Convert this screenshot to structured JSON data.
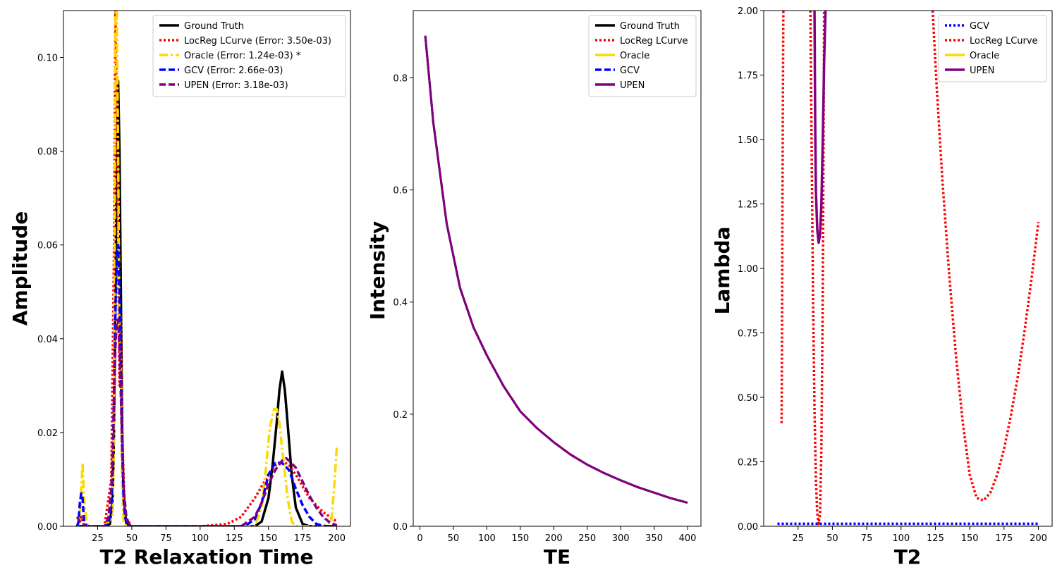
{
  "chart_data": [
    {
      "type": "line",
      "xlabel": "T2 Relaxation Time",
      "ylabel": "Amplitude",
      "xlim": [
        0,
        210
      ],
      "ylim": [
        0,
        0.11
      ],
      "xticks": [
        25,
        50,
        75,
        100,
        125,
        150,
        175,
        200
      ],
      "xtick_labels": [
        "25",
        "50",
        "75",
        "100",
        "125",
        "150",
        "175",
        "200"
      ],
      "yticks": [
        0.0,
        0.02,
        0.04,
        0.06,
        0.08,
        0.1
      ],
      "ytick_labels": [
        "0.00",
        "0.02",
        "0.04",
        "0.06",
        "0.08",
        "0.10"
      ],
      "legend_position": "top-right",
      "grid": false,
      "series": [
        {
          "name": "Ground Truth",
          "color": "#000000",
          "style": "solid",
          "x": [
            10,
            30,
            34,
            36,
            37,
            38,
            39,
            40,
            41,
            42,
            43,
            44,
            46,
            50,
            100,
            140,
            145,
            150,
            153,
            156,
            158,
            160,
            162,
            164,
            167,
            170,
            175,
            180,
            200
          ],
          "y": [
            0,
            0,
            0.0005,
            0.006,
            0.02,
            0.05,
            0.08,
            0.095,
            0.08,
            0.05,
            0.02,
            0.006,
            0.0005,
            0,
            0,
            0,
            0.001,
            0.006,
            0.013,
            0.022,
            0.029,
            0.033,
            0.029,
            0.022,
            0.011,
            0.004,
            0.0005,
            0,
            0
          ]
        },
        {
          "name": "LocReg LCurve (Error: 3.50e-03)",
          "color": "#ff0000",
          "style": "dotted",
          "x": [
            10,
            12,
            13,
            15,
            20,
            30,
            35,
            37,
            38,
            39,
            40,
            41,
            42,
            43,
            45,
            50,
            100,
            120,
            130,
            140,
            150,
            155,
            160,
            165,
            170,
            180,
            190,
            200
          ],
          "y": [
            0,
            0.001,
            0.002,
            0.0003,
            0,
            0,
            0.01,
            0.06,
            0.11,
            0.09,
            0.06,
            0.03,
            0.045,
            0.02,
            0.002,
            0,
            0,
            0.0005,
            0.002,
            0.006,
            0.011,
            0.013,
            0.014,
            0.013,
            0.011,
            0.006,
            0.003,
            0.001
          ]
        },
        {
          "name": "Oracle (Error: 1.24e-03) *",
          "color": "#ffd700",
          "style": "dashdot",
          "x": [
            10,
            12,
            13,
            14,
            15,
            17,
            20,
            30,
            36,
            37,
            38,
            39,
            40,
            41,
            42,
            43,
            44,
            46,
            50,
            100,
            140,
            145,
            148,
            151,
            154,
            156,
            158,
            161,
            164,
            167,
            170,
            175,
            190,
            196,
            198,
            200
          ],
          "y": [
            0,
            0.001,
            0.008,
            0.0135,
            0.006,
            0.0005,
            0,
            0,
            0.002,
            0.02,
            0.11,
            0.11,
            0.08,
            0.04,
            0.035,
            0.009,
            0.001,
            0,
            0,
            0,
            0,
            0.004,
            0.012,
            0.021,
            0.025,
            0.025,
            0.022,
            0.014,
            0.006,
            0.001,
            0,
            0,
            0,
            0.001,
            0.008,
            0.017
          ]
        },
        {
          "name": "GCV (Error: 2.66e-03)",
          "color": "#0000ff",
          "style": "dashed",
          "x": [
            10,
            11,
            12,
            13,
            14,
            15,
            17,
            20,
            30,
            33,
            35,
            36,
            37,
            38,
            39,
            40,
            41,
            42,
            43,
            44,
            45,
            47,
            50,
            100,
            130,
            135,
            140,
            145,
            150,
            155,
            160,
            165,
            170,
            175,
            180,
            185,
            190,
            195,
            200
          ],
          "y": [
            0,
            0.001,
            0.005,
            0.007,
            0.006,
            0.001,
            0,
            0,
            0,
            0.0005,
            0.004,
            0.012,
            0.028,
            0.045,
            0.058,
            0.06,
            0.05,
            0.033,
            0.016,
            0.006,
            0.002,
            0,
            0,
            0,
            0,
            0.0005,
            0.0015,
            0.005,
            0.011,
            0.0135,
            0.0135,
            0.012,
            0.008,
            0.0045,
            0.002,
            0.0005,
            0.0001,
            0,
            0
          ]
        },
        {
          "name": "UPEN (Error: 3.18e-03)",
          "color": "#800080",
          "style": "dashed",
          "x": [
            10,
            12,
            14,
            16,
            20,
            30,
            33,
            35,
            36,
            37,
            38,
            39,
            40,
            41,
            42,
            43,
            44,
            46,
            48,
            50,
            100,
            130,
            140,
            145,
            150,
            155,
            160,
            163,
            165,
            170,
            175,
            180,
            185,
            190,
            195,
            200
          ],
          "y": [
            0.002,
            0.001,
            0.0005,
            0,
            0,
            0,
            0.002,
            0.008,
            0.015,
            0.027,
            0.038,
            0.044,
            0.044,
            0.038,
            0.028,
            0.016,
            0.008,
            0.002,
            0.0005,
            0,
            0,
            0,
            0.002,
            0.005,
            0.009,
            0.012,
            0.014,
            0.0145,
            0.014,
            0.0125,
            0.0095,
            0.0065,
            0.004,
            0.002,
            0.0008,
            0.0002
          ]
        }
      ]
    },
    {
      "type": "line",
      "xlabel": "TE",
      "ylabel": "Intensity",
      "xlim": [
        -10,
        420
      ],
      "ylim": [
        0,
        0.92
      ],
      "xticks": [
        0,
        50,
        100,
        150,
        200,
        250,
        300,
        350,
        400
      ],
      "xtick_labels": [
        "0",
        "50",
        "100",
        "150",
        "200",
        "250",
        "300",
        "350",
        "400"
      ],
      "yticks": [
        0.0,
        0.2,
        0.4,
        0.6,
        0.8
      ],
      "ytick_labels": [
        "0.0",
        "0.2",
        "0.4",
        "0.6",
        "0.8"
      ],
      "legend_position": "top-right",
      "grid": false,
      "series": [
        {
          "name": "Ground Truth",
          "color": "#000000",
          "style": "solid",
          "curve": "decay",
          "x_range": [
            8,
            400
          ],
          "lw": 3
        },
        {
          "name": "LocReg LCurve",
          "color": "#ff0000",
          "style": "dotted",
          "curve": "decay",
          "x_range": [
            8,
            400
          ],
          "lw": 3
        },
        {
          "name": "Oracle",
          "color": "#ffd700",
          "style": "solid",
          "curve": "decay",
          "x_range": [
            8,
            400
          ],
          "lw": 3
        },
        {
          "name": "GCV",
          "color": "#0000ff",
          "style": "dashed",
          "curve": "decay",
          "x_range": [
            8,
            400
          ],
          "lw": 3
        },
        {
          "name": "UPEN",
          "color": "#800080",
          "style": "solid",
          "curve": "decay",
          "x_range": [
            8,
            400
          ],
          "lw": 3
        }
      ],
      "decay_samples": {
        "x": [
          8,
          20,
          40,
          60,
          80,
          100,
          125,
          150,
          175,
          200,
          225,
          250,
          275,
          300,
          325,
          350,
          375,
          400
        ],
        "y": [
          0.875,
          0.72,
          0.54,
          0.425,
          0.355,
          0.305,
          0.25,
          0.205,
          0.175,
          0.15,
          0.128,
          0.11,
          0.095,
          0.082,
          0.07,
          0.06,
          0.05,
          0.042
        ]
      }
    },
    {
      "type": "line",
      "xlabel": "T2",
      "ylabel": "Lambda",
      "xlim": [
        0,
        210
      ],
      "ylim": [
        0,
        2.0
      ],
      "xticks": [
        25,
        50,
        75,
        100,
        125,
        150,
        175,
        200
      ],
      "xtick_labels": [
        "25",
        "50",
        "75",
        "100",
        "125",
        "150",
        "175",
        "200"
      ],
      "yticks": [
        0.0,
        0.25,
        0.5,
        0.75,
        1.0,
        1.25,
        1.5,
        1.75,
        2.0
      ],
      "ytick_labels": [
        "0.00",
        "0.25",
        "0.50",
        "0.75",
        "1.00",
        "1.25",
        "1.50",
        "1.75",
        "2.00"
      ],
      "legend_position": "top-right",
      "grid": false,
      "series": [
        {
          "name": "GCV",
          "color": "#0000ff",
          "style": "dotted",
          "x": [
            10,
            200
          ],
          "y": [
            0.01,
            0.01
          ]
        },
        {
          "name": "LocReg LCurve",
          "color": "#ff0000",
          "style": "dotted",
          "segments": [
            {
              "x": [
                13,
                13.3,
                13.6,
                14,
                14.3
              ],
              "y": [
                0.4,
                0.7,
                1.2,
                1.7,
                2.0
              ]
            },
            {
              "x": [
                34,
                35,
                36,
                37,
                38,
                39,
                40,
                41,
                42,
                43,
                44
              ],
              "y": [
                2.0,
                1.4,
                0.85,
                0.45,
                0.18,
                0.05,
                0.01,
                0.05,
                0.3,
                0.9,
                2.0
              ]
            },
            {
              "x": [
                123,
                126,
                130,
                135,
                140,
                145,
                150,
                155,
                160,
                165,
                170,
                175,
                180,
                185,
                190,
                195,
                200
              ],
              "y": [
                2.0,
                1.7,
                1.35,
                0.98,
                0.66,
                0.4,
                0.2,
                0.11,
                0.1,
                0.13,
                0.2,
                0.3,
                0.43,
                0.58,
                0.76,
                0.96,
                1.18
              ]
            }
          ]
        },
        {
          "name": "Oracle",
          "color": "#ffd700",
          "style": "solid",
          "x": [
            10,
            200
          ],
          "y": [
            0.0,
            0.0
          ]
        },
        {
          "name": "UPEN",
          "color": "#800080",
          "style": "solid",
          "segments": [
            {
              "x": [
                37,
                37.5,
                38,
                39,
                40,
                41,
                42,
                43,
                44,
                45
              ],
              "y": [
                2.0,
                1.55,
                1.3,
                1.15,
                1.1,
                1.13,
                1.25,
                1.5,
                1.8,
                2.0
              ]
            }
          ]
        }
      ]
    }
  ]
}
